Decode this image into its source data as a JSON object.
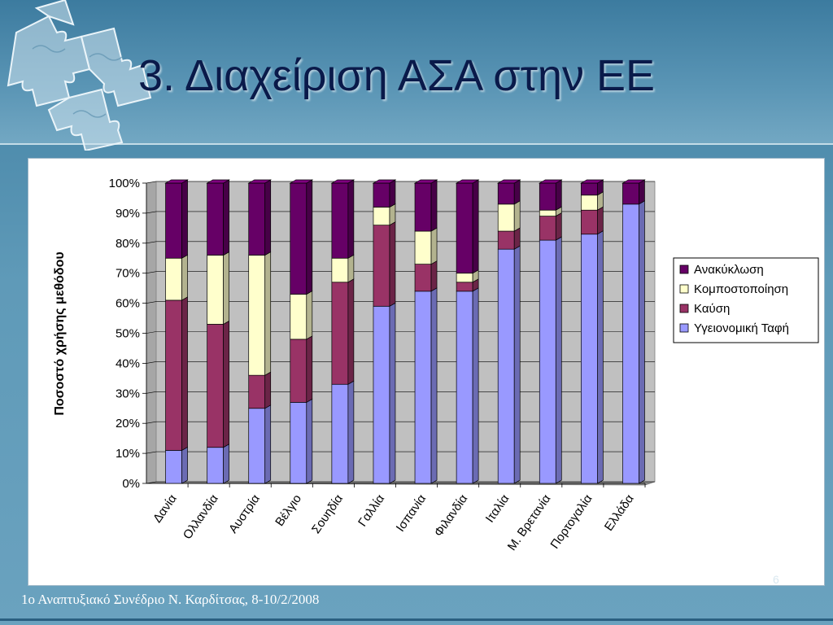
{
  "slide": {
    "title": "3. Διαχείριση ΑΣΑ στην ΕΕ",
    "footer": "1ο Αναπτυξιακό Συνέδριο Ν. Καρδίτσας, 8-10/2/2008",
    "slide_number": "6"
  },
  "colors": {
    "landfill": "#9999ff",
    "incineration": "#993366",
    "composting": "#ffffcc",
    "recycling": "#660066"
  },
  "chart_data": {
    "type": "bar",
    "stacked": true,
    "percent": true,
    "title": "",
    "xlabel": "",
    "ylabel": "Ποσοστό χρήσης μεθόδου",
    "ylim": [
      0,
      100
    ],
    "yticks": [
      "0%",
      "10%",
      "20%",
      "30%",
      "40%",
      "50%",
      "60%",
      "70%",
      "80%",
      "90%",
      "100%"
    ],
    "legend_position": "right",
    "categories": [
      "Δανία",
      "Ολλανδία",
      "Αυστρία",
      "Βέλγιο",
      "Σουηδία",
      "Γαλλία",
      "Ισπανία",
      "Φιλανδία",
      "Ιταλία",
      "Μ. Βρετανία",
      "Πορτογαλία",
      "Ελλάδα"
    ],
    "series": [
      {
        "name": "Υγειονομική Ταφή",
        "color_key": "landfill",
        "values": [
          11,
          12,
          25,
          27,
          33,
          59,
          64,
          64,
          78,
          81,
          83,
          93
        ]
      },
      {
        "name": "Καύση",
        "color_key": "incineration",
        "values": [
          50,
          41,
          11,
          21,
          34,
          27,
          9,
          3,
          6,
          8,
          8,
          0
        ]
      },
      {
        "name": "Κομποστοποίηση",
        "color_key": "composting",
        "values": [
          14,
          23,
          40,
          15,
          8,
          6,
          11,
          3,
          9,
          2,
          5,
          0
        ]
      },
      {
        "name": "Ανακύκλωση",
        "color_key": "recycling",
        "values": [
          25,
          24,
          24,
          37,
          25,
          8,
          16,
          30,
          7,
          9,
          4,
          7
        ]
      }
    ],
    "legend_order": [
      "Ανακύκλωση",
      "Κομποστοποίηση",
      "Καύση",
      "Υγειονομική Ταφή"
    ]
  }
}
